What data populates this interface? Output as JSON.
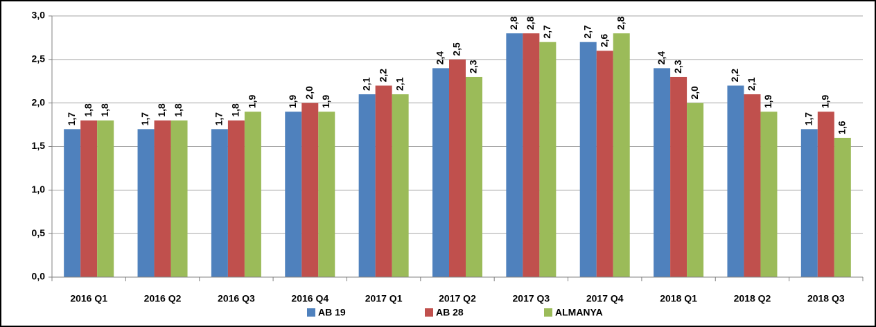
{
  "chart_data": {
    "type": "bar",
    "categories": [
      "2016 Q1",
      "2016 Q2",
      "2016 Q3",
      "2016 Q4",
      "2017 Q1",
      "2017 Q2",
      "2017 Q3",
      "2017 Q4",
      "2018 Q1",
      "2018 Q2",
      "2018 Q3"
    ],
    "series": [
      {
        "name": "AB 19",
        "color": "#4f81bd",
        "values": [
          1.7,
          1.7,
          1.7,
          1.9,
          2.1,
          2.4,
          2.8,
          2.7,
          2.4,
          2.2,
          1.7
        ],
        "value_labels": [
          "1,7",
          "1,7",
          "1,7",
          "1,9",
          "2,1",
          "2,4",
          "2,8",
          "2,7",
          "2,4",
          "2,2",
          "1,7"
        ]
      },
      {
        "name": "AB 28",
        "color": "#c0504d",
        "values": [
          1.8,
          1.8,
          1.8,
          2.0,
          2.2,
          2.5,
          2.8,
          2.6,
          2.3,
          2.1,
          1.9
        ],
        "value_labels": [
          "1,8",
          "1,8",
          "1,8",
          "2,0",
          "2,2",
          "2,5",
          "2,8",
          "2,6",
          "2,3",
          "2,1",
          "1,9"
        ]
      },
      {
        "name": "ALMANYA",
        "color": "#9bbb59",
        "values": [
          1.8,
          1.8,
          1.9,
          1.9,
          2.1,
          2.3,
          2.7,
          2.8,
          2.0,
          1.9,
          1.6
        ],
        "value_labels": [
          "1,8",
          "1,8",
          "1,9",
          "1,9",
          "2,1",
          "2,3",
          "2,7",
          "2,8",
          "2,0",
          "1,9",
          "1,6"
        ]
      }
    ],
    "ylim": [
      0,
      3
    ],
    "yticks": [
      {
        "value": 0,
        "label": "0,0"
      },
      {
        "value": 0.5,
        "label": "0,5"
      },
      {
        "value": 1,
        "label": "1,0"
      },
      {
        "value": 1.5,
        "label": "1,5"
      },
      {
        "value": 2,
        "label": "2,0"
      },
      {
        "value": 2.5,
        "label": "2,5"
      },
      {
        "value": 3,
        "label": "3,0"
      }
    ],
    "grid": true,
    "legend": "bottom"
  }
}
